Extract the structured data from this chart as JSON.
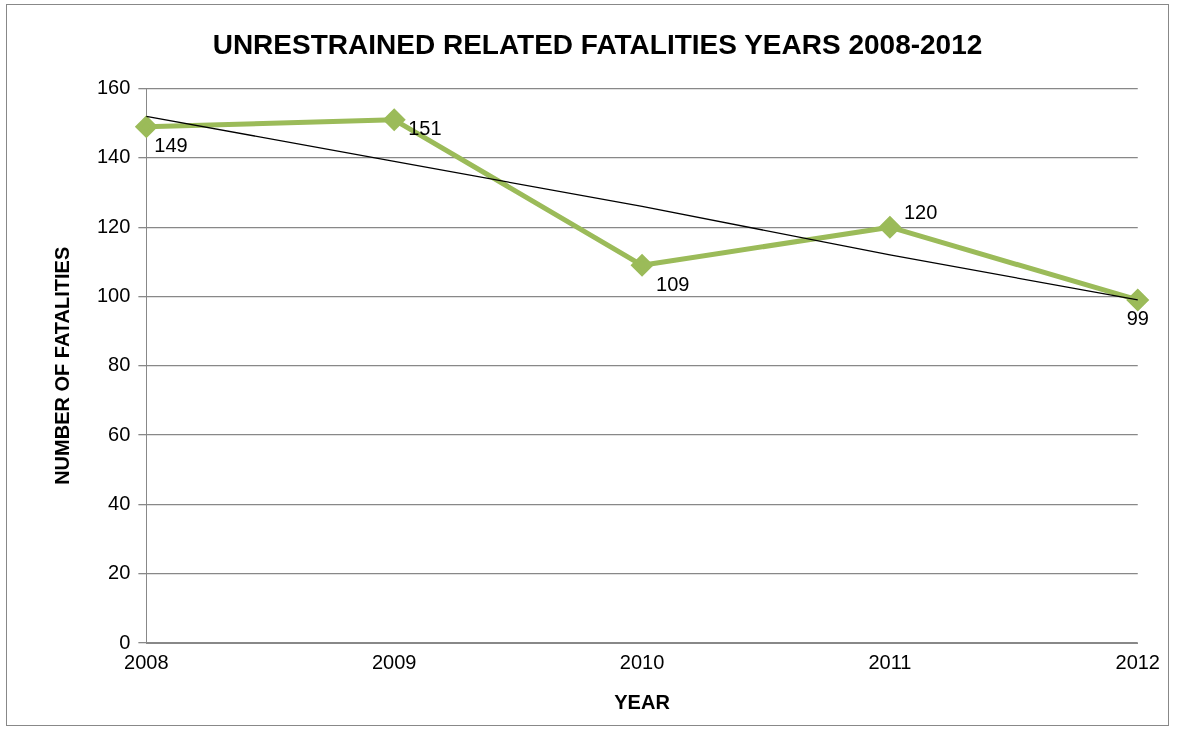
{
  "chart_data": {
    "type": "line",
    "title": "UNRESTRAINED RELATED FATALITIES YEARS 2008-2012",
    "xlabel": "YEAR",
    "ylabel": "NUMBER OF FATALITIES",
    "categories": [
      "2008",
      "2009",
      "2010",
      "2011",
      "2012"
    ],
    "series": [
      {
        "color": "#9bbb59",
        "values": [
          149,
          151,
          109,
          120,
          99
        ],
        "marker": "diamond",
        "value_labels": [
          "149",
          "151",
          "109",
          "120",
          "99"
        ]
      },
      {
        "type": "line",
        "color": "#000000",
        "values": [
          152,
          139,
          126,
          112,
          99
        ],
        "marker": "none"
      }
    ],
    "ylim": [
      0,
      160
    ],
    "yticks": [
      0,
      20,
      40,
      60,
      80,
      100,
      120,
      140,
      160
    ],
    "grid": "y",
    "legend": false
  }
}
